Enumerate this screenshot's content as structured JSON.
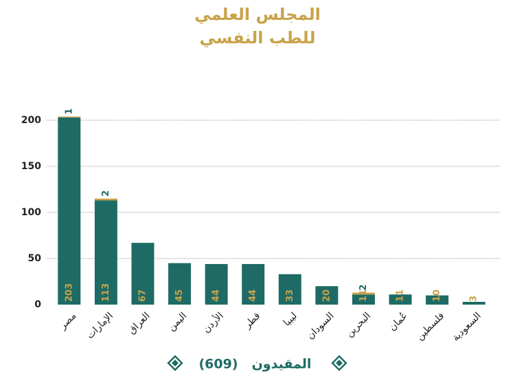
{
  "chart_data": {
    "type": "stacked_bar",
    "title": [
      "المجلس العلمي",
      "للطب النفسي"
    ],
    "categories": [
      "مصر",
      "الإمارات",
      "العراق",
      "اليمن",
      "الأردن",
      "قطر",
      "ليبيا",
      "السودان",
      "البحرين",
      "عُمان",
      "فلسطين",
      "السعودية"
    ],
    "series": [
      {
        "name": "المقيدون",
        "color": "#1e6b65",
        "values": [
          203,
          113,
          67,
          45,
          44,
          44,
          33,
          20,
          11,
          11,
          10,
          3
        ]
      },
      {
        "color": "#c9a24a",
        "values": [
          1,
          2,
          null,
          null,
          null,
          null,
          null,
          null,
          2,
          null,
          null,
          null
        ]
      }
    ],
    "legend_total": {
      "value": 609,
      "label": "(609)"
    },
    "ylim": [
      0,
      220
    ],
    "yticks": [
      0,
      50,
      100,
      150,
      200
    ],
    "grid": true
  }
}
